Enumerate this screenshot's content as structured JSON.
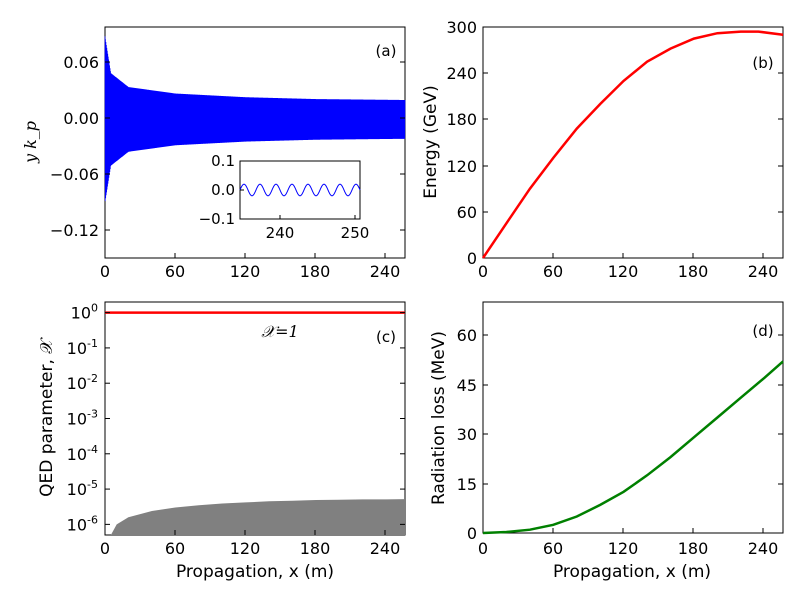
{
  "figure": {
    "panels": {
      "a": {
        "label": "(a)",
        "ylabel": "y k_p",
        "yticks": [
          "0.06",
          "0.00",
          "−0.06",
          "−0.12"
        ],
        "xticks": [
          "0",
          "60",
          "120",
          "180",
          "240"
        ]
      },
      "b": {
        "label": "(b)",
        "ylabel": "Energy (GeV)",
        "yticks": [
          "300",
          "240",
          "180",
          "120",
          "60",
          "0"
        ],
        "xticks": [
          "0",
          "60",
          "120",
          "180",
          "240"
        ]
      },
      "c": {
        "label": "(c)",
        "ylabel": "QED parameter, 𝒳",
        "annotation": "𝒳=1",
        "xlabel": "Propagation, x (m)",
        "xticks": [
          "0",
          "60",
          "120",
          "180",
          "240"
        ]
      },
      "d": {
        "label": "(d)",
        "ylabel": "Radiation loss (MeV)",
        "yticks": [
          "60",
          "45",
          "30",
          "15",
          "0"
        ],
        "xlabel": "Propagation, x (m)",
        "xticks": [
          "0",
          "60",
          "120",
          "180",
          "240"
        ]
      }
    },
    "inset": {
      "yticks": [
        "0.1",
        "0.0",
        "−0.1"
      ],
      "xticks": [
        "240",
        "250"
      ]
    },
    "colors": {
      "a": "#0000ff",
      "b": "#ff0000",
      "c_line": "#ff0000",
      "c_fill": "#808080",
      "d": "#008000"
    }
  },
  "chart_data": [
    {
      "panel": "a",
      "type": "line",
      "title": "",
      "xlabel": "",
      "ylabel": "y k_p",
      "xlim": [
        0,
        256
      ],
      "ylim": [
        -0.15,
        0.1
      ],
      "series": [
        {
          "description": "oscillating trace, envelope decays from ~0.09 at x=0 to ~0.02 at x=256",
          "x_envelope": [
            0,
            5,
            20,
            60,
            120,
            180,
            256
          ],
          "amplitude": [
            0.09,
            0.05,
            0.035,
            0.028,
            0.024,
            0.022,
            0.021
          ]
        }
      ]
    },
    {
      "panel": "a_inset",
      "type": "line",
      "xlim": [
        234,
        250
      ],
      "ylim": [
        -0.1,
        0.1
      ],
      "series": [
        {
          "description": "sinusoid amplitude 0.02",
          "amplitude": 0.02,
          "cycles": 7.5
        }
      ]
    },
    {
      "panel": "b",
      "type": "line",
      "xlabel": "",
      "ylabel": "Energy (GeV)",
      "xlim": [
        0,
        256
      ],
      "ylim": [
        0,
        300
      ],
      "series": [
        {
          "x": [
            0,
            20,
            40,
            60,
            80,
            100,
            120,
            140,
            160,
            180,
            200,
            220,
            235,
            256
          ],
          "y": [
            0,
            45,
            90,
            130,
            168,
            200,
            230,
            255,
            272,
            285,
            292,
            294,
            294,
            290
          ]
        }
      ]
    },
    {
      "panel": "c",
      "type": "area",
      "xlabel": "Propagation, x (m)",
      "ylabel": "QED parameter, 𝒳",
      "yscale": "log",
      "xlim": [
        0,
        256
      ],
      "ylim": [
        5e-07,
        2
      ],
      "series": [
        {
          "x": [
            0,
            256
          ],
          "y": [
            1,
            1
          ]
        },
        {
          "x": [
            5,
            10,
            20,
            40,
            60,
            80,
            100,
            120,
            140,
            160,
            180,
            200,
            220,
            240,
            256
          ],
          "y": [
            5e-07,
            1e-06,
            1.6e-06,
            2.4e-06,
            3e-06,
            3.5e-06,
            3.9e-06,
            4.2e-06,
            4.5e-06,
            4.7e-06,
            4.9e-06,
            5e-06,
            5.1e-06,
            5.1e-06,
            5.2e-06
          ]
        }
      ]
    },
    {
      "panel": "d",
      "type": "line",
      "xlabel": "Propagation, x (m)",
      "ylabel": "Radiation loss (MeV)",
      "xlim": [
        0,
        256
      ],
      "ylim": [
        0,
        70
      ],
      "series": [
        {
          "x": [
            0,
            20,
            40,
            60,
            80,
            100,
            120,
            140,
            160,
            180,
            200,
            220,
            240,
            256
          ],
          "y": [
            0,
            0.3,
            1.0,
            2.5,
            5.0,
            8.5,
            12.5,
            17.5,
            23.0,
            29.0,
            35.0,
            41.0,
            47.0,
            52.0
          ]
        }
      ]
    }
  ]
}
